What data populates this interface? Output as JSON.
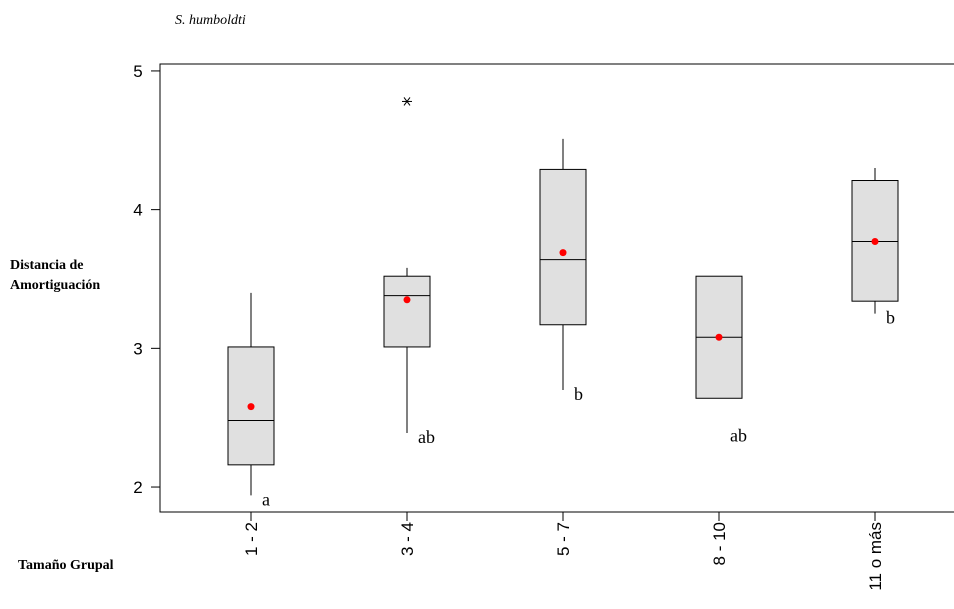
{
  "chart_data": {
    "type": "box",
    "title": "S. humboldti",
    "ylabel_lines": [
      "Distancia de",
      "Amortiguación"
    ],
    "xlabel": "Tamaño Grupal",
    "ylim": [
      1.82,
      5.05
    ],
    "yticks": [
      2,
      3,
      4,
      5
    ],
    "grid": false,
    "categories": [
      "1 - 2",
      "3 - 4",
      "5 - 7",
      "8 - 10",
      "11 o más"
    ],
    "boxes": [
      {
        "whisker_low": 1.94,
        "q1": 2.16,
        "median": 2.48,
        "q3": 3.01,
        "whisker_high": 3.4,
        "mean": 2.58,
        "outliers": [],
        "letter": "a"
      },
      {
        "whisker_low": 2.39,
        "q1": 3.01,
        "median": 3.38,
        "q3": 3.52,
        "whisker_high": 3.58,
        "mean": 3.35,
        "outliers": [
          4.78
        ],
        "letter": "ab"
      },
      {
        "whisker_low": 2.7,
        "q1": 3.17,
        "median": 3.64,
        "q3": 4.29,
        "whisker_high": 4.51,
        "mean": 3.69,
        "outliers": [],
        "letter": "b"
      },
      {
        "whisker_low": 2.64,
        "q1": 2.64,
        "median": 3.08,
        "q3": 3.52,
        "whisker_high": 3.52,
        "mean": 3.08,
        "outliers": [],
        "letter": "ab"
      },
      {
        "whisker_low": 3.25,
        "q1": 3.34,
        "median": 3.77,
        "q3": 4.21,
        "whisker_high": 4.3,
        "mean": 3.77,
        "outliers": [],
        "letter": "b"
      }
    ],
    "colors": {
      "box_fill": "#e0e0e0",
      "stroke": "#000000",
      "mean": "#ff0000"
    }
  }
}
